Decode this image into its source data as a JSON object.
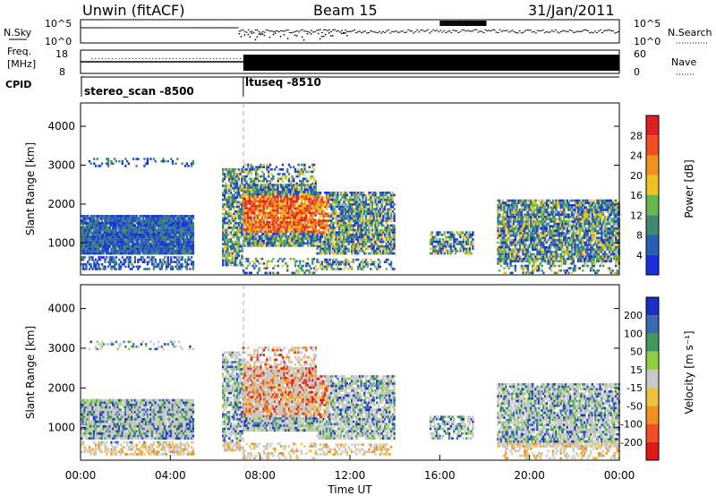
{
  "header": {
    "station": "Unwin (fitACF)",
    "beam": "Beam 15",
    "date": "31/Jan/2011"
  },
  "top_panel": {
    "left_label": "N.Sky",
    "right_label": "N.Search",
    "left_ticks": [
      "10^5",
      "10^0"
    ],
    "right_ticks": [
      "10^5",
      "10^0"
    ]
  },
  "freq_panel": {
    "left_label_1": "Freq.",
    "left_label_2": "[MHz]",
    "right_label": "Nave",
    "left_ticks": [
      "18",
      "8"
    ],
    "right_ticks": [
      "60",
      "0"
    ]
  },
  "cpid": {
    "label": "CPID",
    "segments": [
      {
        "start_hour": 0,
        "name": "stereo_scan -8500"
      },
      {
        "start_hour": 7.25,
        "name": "ltuseq -8510"
      }
    ]
  },
  "chart_data": [
    {
      "type": "heatmap",
      "name": "power",
      "ylabel": "Slant Range [km]",
      "ylim": [
        180,
        4600
      ],
      "yticks": [
        "1000",
        "2000",
        "3000",
        "4000"
      ],
      "xlim_hours": [
        0,
        24
      ],
      "colorbar": {
        "label": "Power [dB]",
        "tick_labels": [
          "4",
          "8",
          "12",
          "16",
          "20",
          "24",
          "28"
        ],
        "colors": [
          "#1a30e0",
          "#2a5fb8",
          "#3f8a6e",
          "#66b84a",
          "#f0c020",
          "#f09020",
          "#f05020",
          "#e02020"
        ]
      }
    },
    {
      "type": "heatmap",
      "name": "velocity",
      "ylabel": "Slant Range [km]",
      "ylim": [
        180,
        4600
      ],
      "yticks": [
        "1000",
        "2000",
        "3000",
        "4000"
      ],
      "xlim_hours": [
        0,
        24
      ],
      "colorbar": {
        "label": "Velocity [m s⁻¹]",
        "tick_labels": [
          "200",
          "100",
          "50",
          "15",
          "-15",
          "-50",
          "-100",
          "-200"
        ],
        "colors": [
          "#1a30c8",
          "#3a6ab0",
          "#3f9a5e",
          "#8ed040",
          "#c8c8c8",
          "#f0c040",
          "#f09020",
          "#f05020",
          "#e01818"
        ]
      }
    }
  ],
  "xaxis": {
    "label": "Time UT",
    "tick_labels": [
      "00:00",
      "04:00",
      "08:00",
      "12:00",
      "16:00",
      "20:00",
      "00:00"
    ]
  }
}
